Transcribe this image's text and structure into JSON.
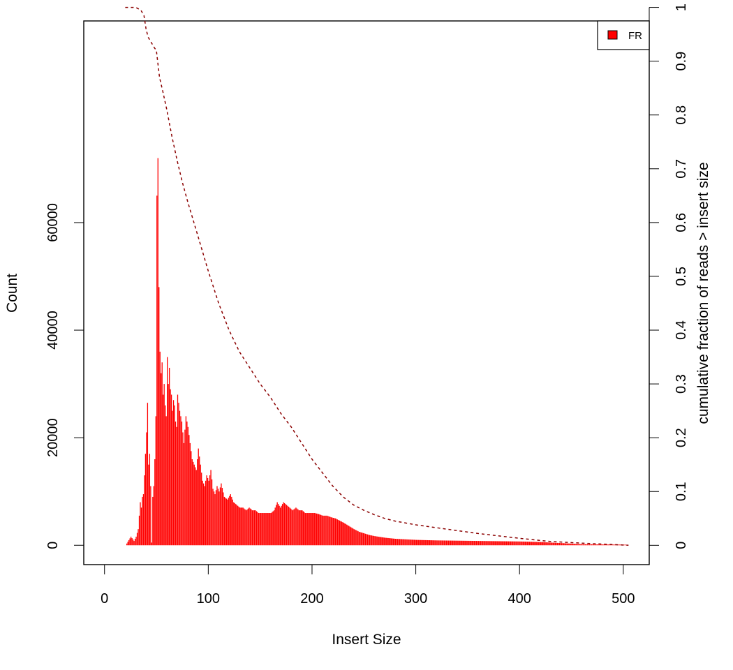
{
  "chart_data": {
    "type": "bar",
    "xlabel": "Insert Size",
    "ylabel": "Count",
    "y2label": "cumulative fraction of reads > insert size",
    "xlim": [
      -20,
      525
    ],
    "ylim": [
      -3600,
      97500
    ],
    "y2lim": [
      -0.0359,
      0.9748
    ],
    "xticks": [
      "0",
      "100",
      "200",
      "300",
      "400",
      "500"
    ],
    "yticks": [
      "0",
      "20000",
      "40000",
      "60000"
    ],
    "y2ticks": [
      "0",
      "0.1",
      "0.2",
      "0.3",
      "0.4",
      "0.5",
      "0.6",
      "0.7",
      "0.8",
      "0.9",
      "1"
    ],
    "bar_color": "#ff0000",
    "line_color": "#8b0000",
    "legend": {
      "position": "top-right",
      "label": "FR",
      "color": "#ff0000"
    },
    "series": [
      {
        "name": "FR",
        "type": "bar",
        "x": [
          20,
          25,
          28,
          30,
          32,
          34,
          35,
          36,
          37,
          38,
          39,
          40,
          41,
          42,
          43,
          44,
          45,
          46,
          47,
          48,
          49,
          50,
          51,
          52,
          53,
          54,
          55,
          56,
          57,
          58,
          59,
          60,
          61,
          62,
          63,
          64,
          65,
          66,
          67,
          68,
          69,
          70,
          72,
          74,
          76,
          78,
          80,
          82,
          84,
          86,
          88,
          90,
          92,
          94,
          96,
          98,
          100,
          102,
          104,
          106,
          108,
          110,
          112,
          115,
          118,
          121,
          124,
          127,
          130,
          133,
          136,
          139,
          142,
          145,
          148,
          151,
          154,
          157,
          160,
          163,
          166,
          169,
          172,
          175,
          178,
          181,
          184,
          187,
          190,
          193,
          196,
          199,
          202,
          206,
          210,
          214,
          218,
          222,
          226,
          230,
          235,
          240,
          245,
          250,
          255,
          260,
          270,
          280,
          290,
          300,
          320,
          340,
          360,
          380,
          400,
          420,
          440,
          460,
          480,
          505
        ],
        "values": [
          0,
          1600,
          800,
          1600,
          3000,
          8000,
          7000,
          9000,
          9500,
          13000,
          17000,
          21000,
          26500,
          15000,
          17000,
          11000,
          500,
          9000,
          11000,
          16000,
          24000,
          65000,
          72000,
          48000,
          36000,
          32000,
          34000,
          28000,
          30000,
          26000,
          24000,
          35000,
          30000,
          33000,
          29000,
          28000,
          25000,
          27000,
          26000,
          23000,
          22000,
          28000,
          25000,
          23000,
          19000,
          24000,
          22000,
          19000,
          16000,
          15000,
          14000,
          18000,
          15000,
          12000,
          11000,
          13000,
          12000,
          14000,
          10500,
          9500,
          11000,
          10000,
          11500,
          9000,
          8500,
          9500,
          8000,
          7500,
          7000,
          7000,
          6500,
          7000,
          6500,
          6500,
          6000,
          6000,
          6000,
          6000,
          6000,
          6500,
          8000,
          7000,
          8000,
          7500,
          7000,
          6500,
          7000,
          6500,
          6500,
          6000,
          6000,
          6000,
          6000,
          5800,
          5500,
          5500,
          5200,
          5000,
          4600,
          4200,
          3600,
          3000,
          2500,
          2200,
          1900,
          1700,
          1400,
          1200,
          1100,
          1000,
          900,
          850,
          800,
          750,
          700,
          600,
          400,
          200,
          150,
          100
        ]
      },
      {
        "name": "cumulative fraction of reads > insert size",
        "type": "line",
        "x": [
          20,
          30,
          35,
          38,
          40,
          42,
          45,
          48,
          50,
          53,
          56,
          60,
          65,
          70,
          75,
          80,
          90,
          100,
          110,
          120,
          130,
          140,
          150,
          160,
          170,
          180,
          190,
          200,
          210,
          220,
          230,
          240,
          250,
          260,
          270,
          280,
          300,
          330,
          360,
          400,
          430,
          460,
          505
        ],
        "values": [
          1.0,
          1.0,
          0.995,
          0.985,
          0.96,
          0.945,
          0.935,
          0.925,
          0.92,
          0.87,
          0.845,
          0.81,
          0.76,
          0.715,
          0.675,
          0.64,
          0.575,
          0.51,
          0.45,
          0.4,
          0.36,
          0.33,
          0.3,
          0.275,
          0.245,
          0.22,
          0.19,
          0.16,
          0.135,
          0.11,
          0.09,
          0.075,
          0.065,
          0.057,
          0.05,
          0.045,
          0.038,
          0.03,
          0.022,
          0.013,
          0.007,
          0.004,
          0.0
        ]
      }
    ]
  }
}
